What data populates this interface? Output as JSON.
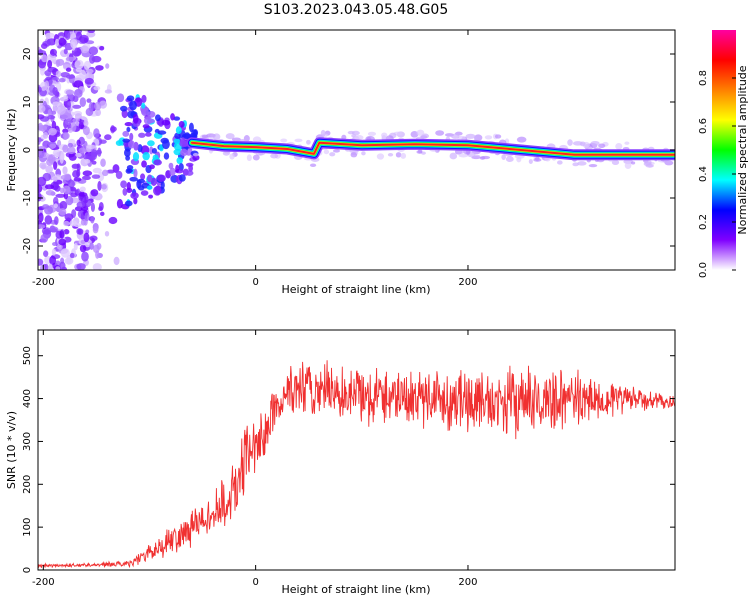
{
  "figure": {
    "title": "S103.2023.043.05.48.G05"
  },
  "colors": {
    "axis": "#000000",
    "snr_line": "#f03030",
    "background": "#ffffff"
  },
  "chart_data": [
    {
      "type": "heatmap",
      "title": "S103.2023.043.05.48.G05",
      "xlabel": "Height of straight line (km)",
      "ylabel": "Frequency (Hz)",
      "xlim": [
        -205,
        395
      ],
      "ylim": [
        -25,
        25
      ],
      "xticks": [
        -200,
        0,
        200
      ],
      "yticks": [
        -20,
        -10,
        0,
        10,
        20
      ],
      "colorbar": {
        "label": "Normalized spectral amplitude",
        "range": [
          0,
          1
        ],
        "ticks": [
          "0.0",
          "0.2",
          "0.4",
          "0.6",
          "0.8"
        ],
        "colormap": [
          "#ffffff",
          "#8000ff",
          "#0000ff",
          "#00ffff",
          "#00ff00",
          "#ffff00",
          "#ff8000",
          "#ff0000",
          "#ff00a0"
        ]
      },
      "ridge": {
        "description": "dominant spectral peak",
        "x": [
          -60,
          -30,
          0,
          30,
          55,
          60,
          100,
          150,
          200,
          250,
          300,
          350,
          395
        ],
        "y": [
          1.5,
          0.8,
          0.6,
          0.2,
          -0.8,
          1.5,
          1.0,
          1.2,
          1.0,
          0.0,
          -1.0,
          -1.0,
          -1.0
        ]
      },
      "noise_region": {
        "x": [
          -205,
          -130
        ],
        "y": [
          -25,
          25
        ]
      },
      "scatter_region": {
        "x": [
          -130,
          -55
        ],
        "y": [
          -18,
          12
        ]
      }
    },
    {
      "type": "line",
      "xlabel": "Height of straight line (km)",
      "ylabel": "SNR (10 * v/v)",
      "xlim": [
        -205,
        395
      ],
      "ylim": [
        0,
        560
      ],
      "xticks": [
        -200,
        0,
        200
      ],
      "yticks": [
        0,
        100,
        200,
        300,
        400,
        500
      ],
      "series": [
        {
          "color": "#f03030",
          "x": [
            -205,
            -150,
            -120,
            -100,
            -80,
            -60,
            -40,
            -20,
            -10,
            0,
            10,
            20,
            30,
            50,
            100,
            150,
            200,
            250,
            300,
            350,
            395
          ],
          "y": [
            10,
            12,
            15,
            40,
            70,
            100,
            130,
            180,
            260,
            280,
            330,
            380,
            420,
            420,
            410,
            405,
            395,
            390,
            400,
            400,
            390
          ],
          "spread": [
            5,
            5,
            8,
            25,
            40,
            50,
            60,
            80,
            100,
            80,
            70,
            70,
            80,
            80,
            80,
            80,
            90,
            90,
            80,
            40,
            15
          ]
        }
      ]
    }
  ]
}
